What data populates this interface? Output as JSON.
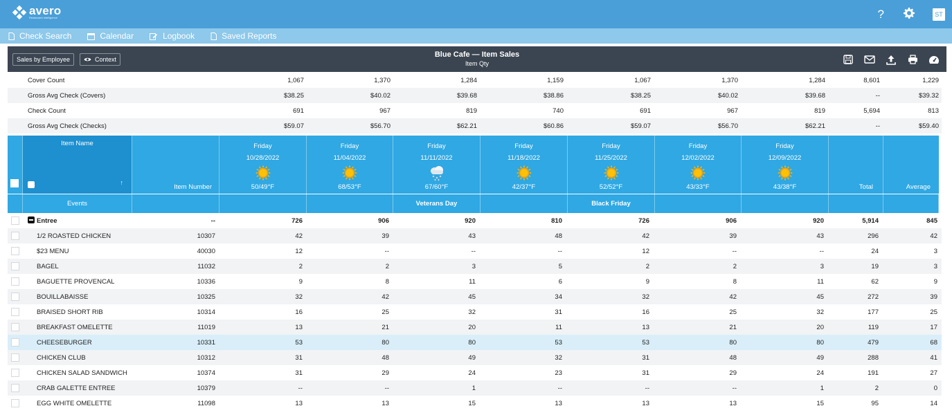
{
  "app": {
    "logo": "avero",
    "logo_tagline": "Restaurant Intelligence",
    "help": "?",
    "avatar": "ST"
  },
  "nav": [
    {
      "label": "Check Search",
      "icon": "document-icon"
    },
    {
      "label": "Calendar",
      "icon": "calendar-icon"
    },
    {
      "label": "Logbook",
      "icon": "edit-icon"
    },
    {
      "label": "Saved Reports",
      "icon": "document-icon"
    }
  ],
  "report": {
    "title": "Blue Cafe — Item Sales",
    "subtitle": "Item Qty",
    "btn_sales_by_employee": "Sales by Employee",
    "btn_context": "Context"
  },
  "summary": [
    {
      "label": "Cover Count",
      "values": [
        "1,067",
        "1,370",
        "1,284",
        "1,159",
        "1,067",
        "1,370",
        "1,284"
      ],
      "total": "8,601",
      "average": "1,229"
    },
    {
      "label": "Gross Avg Check (Covers)",
      "values": [
        "$38.25",
        "$40.02",
        "$39.68",
        "$38.86",
        "$38.25",
        "$40.02",
        "$39.68"
      ],
      "total": "--",
      "average": "$39.32"
    },
    {
      "label": "Check Count",
      "values": [
        "691",
        "967",
        "819",
        "740",
        "691",
        "967",
        "819"
      ],
      "total": "5,694",
      "average": "813"
    },
    {
      "label": "Gross Avg Check (Checks)",
      "values": [
        "$59.07",
        "$56.70",
        "$62.21",
        "$60.86",
        "$59.07",
        "$56.70",
        "$62.21"
      ],
      "total": "--",
      "average": "$59.40"
    }
  ],
  "columns": {
    "item_name": "Item Name",
    "item_number": "Item Number",
    "total": "Total",
    "average": "Average",
    "sort_indicator": "↑",
    "dates": [
      {
        "day": "Friday",
        "date": "10/28/2022",
        "weather": "sun",
        "temp": "50/49°F",
        "event": ""
      },
      {
        "day": "Friday",
        "date": "11/04/2022",
        "weather": "sun",
        "temp": "68/53°F",
        "event": ""
      },
      {
        "day": "Friday",
        "date": "11/11/2022",
        "weather": "snow-cloud",
        "temp": "67/60°F",
        "event": "Veterans Day"
      },
      {
        "day": "Friday",
        "date": "11/18/2022",
        "weather": "sun",
        "temp": "42/37°F",
        "event": ""
      },
      {
        "day": "Friday",
        "date": "11/25/2022",
        "weather": "sun",
        "temp": "52/52°F",
        "event": "Black Friday"
      },
      {
        "day": "Friday",
        "date": "12/02/2022",
        "weather": "sun",
        "temp": "43/33°F",
        "event": ""
      },
      {
        "day": "Friday",
        "date": "12/09/2022",
        "weather": "sun",
        "temp": "43/38°F",
        "event": ""
      }
    ],
    "events_label": "Events"
  },
  "group": {
    "label": "Entree",
    "number": "--",
    "values": [
      "726",
      "906",
      "920",
      "810",
      "726",
      "906",
      "920"
    ],
    "total": "5,914",
    "average": "845"
  },
  "rows": [
    {
      "name": "1/2 ROASTED CHICKEN",
      "number": "10307",
      "values": [
        "42",
        "39",
        "43",
        "48",
        "42",
        "39",
        "43"
      ],
      "total": "296",
      "average": "42"
    },
    {
      "name": "$23 MENU",
      "number": "40030",
      "values": [
        "12",
        "--",
        "--",
        "--",
        "12",
        "--",
        "--"
      ],
      "total": "24",
      "average": "3"
    },
    {
      "name": "BAGEL",
      "number": "11032",
      "values": [
        "2",
        "2",
        "3",
        "5",
        "2",
        "2",
        "3"
      ],
      "total": "19",
      "average": "3"
    },
    {
      "name": "BAGUETTE PROVENCAL",
      "number": "10336",
      "values": [
        "9",
        "8",
        "11",
        "6",
        "9",
        "8",
        "11"
      ],
      "total": "62",
      "average": "9"
    },
    {
      "name": "BOUILLABAISSE",
      "number": "10325",
      "values": [
        "32",
        "42",
        "45",
        "34",
        "32",
        "42",
        "45"
      ],
      "total": "272",
      "average": "39"
    },
    {
      "name": "BRAISED SHORT RIB",
      "number": "10314",
      "values": [
        "16",
        "25",
        "32",
        "31",
        "16",
        "25",
        "32"
      ],
      "total": "177",
      "average": "25"
    },
    {
      "name": "BREAKFAST OMELETTE",
      "number": "11019",
      "values": [
        "13",
        "21",
        "20",
        "11",
        "13",
        "21",
        "20"
      ],
      "total": "119",
      "average": "17"
    },
    {
      "name": "CHEESEBURGER",
      "number": "10331",
      "values": [
        "53",
        "80",
        "80",
        "53",
        "53",
        "80",
        "80"
      ],
      "total": "479",
      "average": "68",
      "highlight": true
    },
    {
      "name": "CHICKEN CLUB",
      "number": "10312",
      "values": [
        "31",
        "48",
        "49",
        "32",
        "31",
        "48",
        "49"
      ],
      "total": "288",
      "average": "41"
    },
    {
      "name": "CHICKEN SALAD SANDWICH",
      "number": "10374",
      "values": [
        "31",
        "29",
        "24",
        "23",
        "31",
        "29",
        "24"
      ],
      "total": "191",
      "average": "27"
    },
    {
      "name": "CRAB GALETTE ENTREE",
      "number": "10379",
      "values": [
        "--",
        "--",
        "1",
        "--",
        "--",
        "--",
        "1"
      ],
      "total": "2",
      "average": "0"
    },
    {
      "name": "EGG WHITE OMELETTE",
      "number": "11098",
      "values": [
        "13",
        "13",
        "15",
        "13",
        "13",
        "13",
        "15"
      ],
      "total": "95",
      "average": "14"
    }
  ]
}
